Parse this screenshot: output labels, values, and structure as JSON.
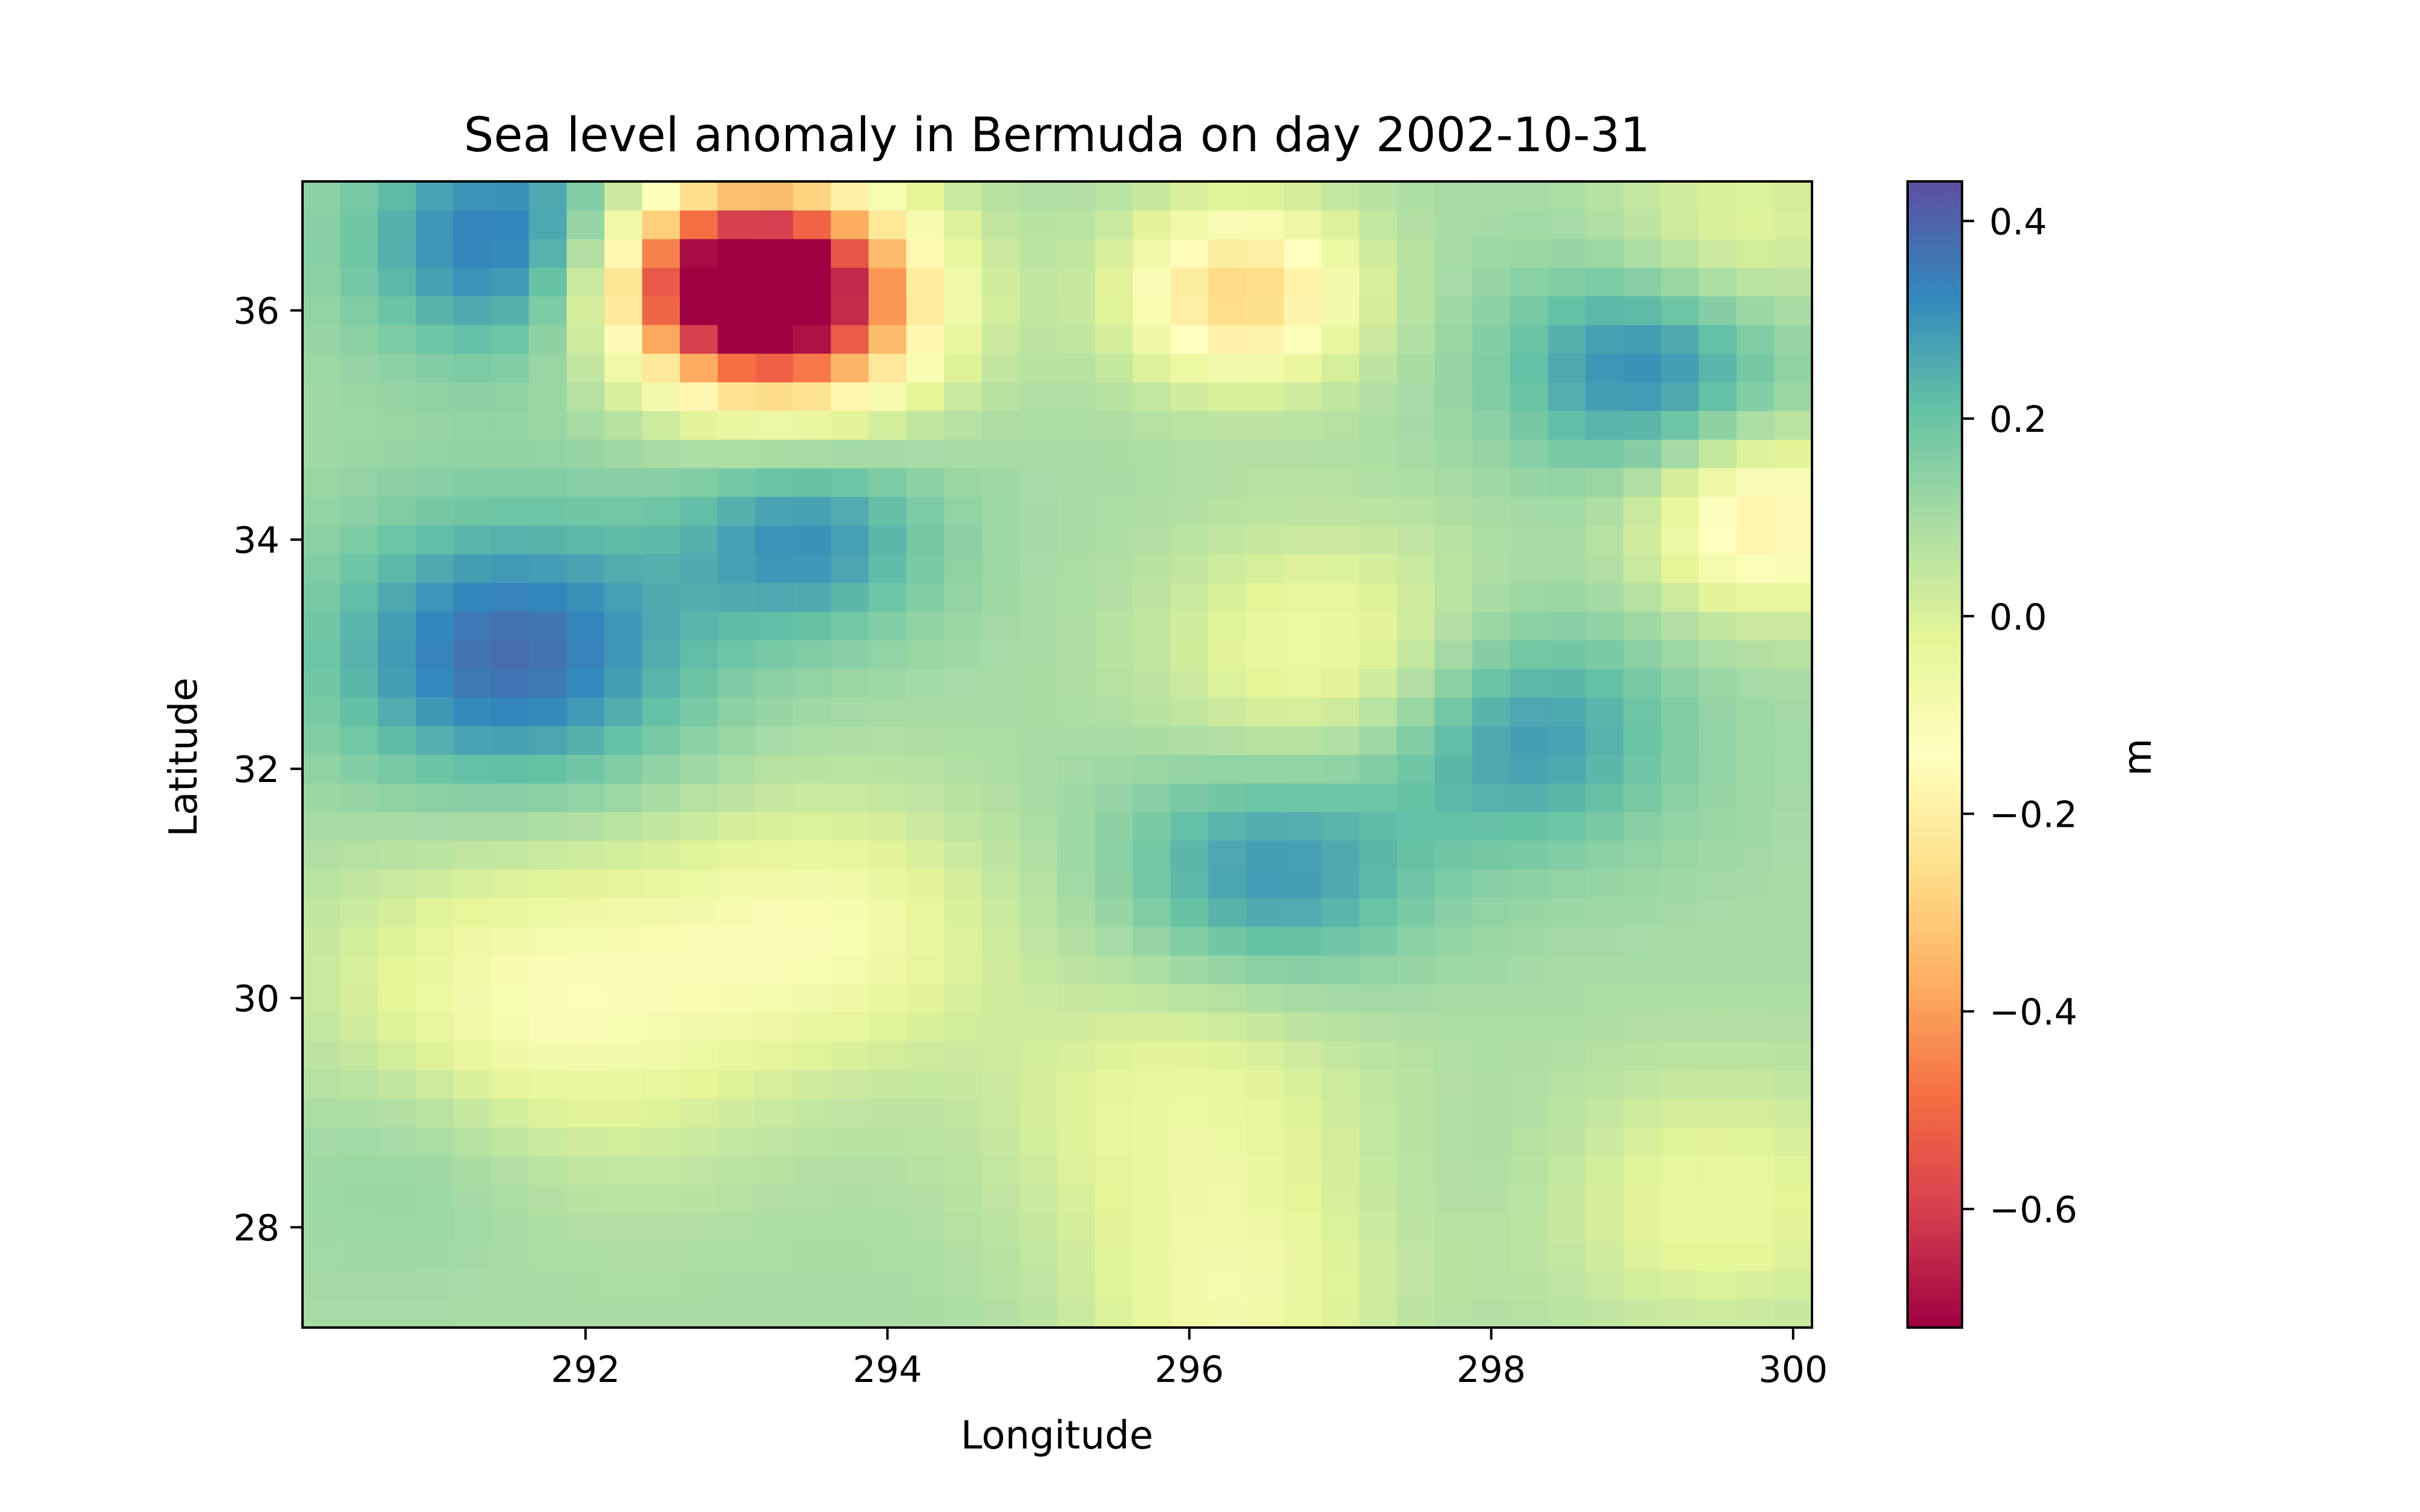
{
  "chart_data": {
    "type": "heatmap",
    "title": "Sea level anomaly in Bermuda on day 2002-10-31",
    "xlabel": "Longitude",
    "ylabel": "Latitude",
    "colorbar_label": "m",
    "colormap": "Spectral",
    "colormap_stops": [
      "#9e0142",
      "#d53e4f",
      "#f46d43",
      "#fdae61",
      "#fee08b",
      "#ffffbf",
      "#e6f598",
      "#abdda4",
      "#66c2a5",
      "#3288bd",
      "#5e4fa2"
    ],
    "xlim": [
      290.125,
      300.125
    ],
    "ylim": [
      27.125,
      37.125
    ],
    "xticks": [
      292,
      294,
      296,
      298,
      300
    ],
    "yticks": [
      28,
      30,
      32,
      34,
      36
    ],
    "clim": [
      -0.72,
      0.44
    ],
    "cbar_ticks": [
      0.4,
      0.2,
      0.0,
      -0.2,
      -0.4,
      -0.6
    ],
    "cbar_tick_labels": [
      "0.4",
      "0.2",
      "0.0",
      "−0.2",
      "−0.4",
      "−0.6"
    ],
    "grid": false,
    "anomaly_features": [
      {
        "lon": 293.35,
        "lat": 36.1,
        "value": -0.7,
        "size": 0.65
      },
      {
        "lon": 292.8,
        "lat": 36.3,
        "value": -0.35,
        "size": 0.55
      },
      {
        "lon": 296.35,
        "lat": 36.15,
        "value": -0.28,
        "size": 0.55
      },
      {
        "lon": 291.5,
        "lat": 36.6,
        "value": 0.36,
        "size": 0.7
      },
      {
        "lon": 291.5,
        "lat": 33.0,
        "value": 0.38,
        "size": 0.85
      },
      {
        "lon": 293.45,
        "lat": 34.0,
        "value": 0.3,
        "size": 0.6
      },
      {
        "lon": 299.0,
        "lat": 35.5,
        "value": 0.32,
        "size": 0.65
      },
      {
        "lon": 299.8,
        "lat": 34.15,
        "value": -0.2,
        "size": 0.55
      },
      {
        "lon": 296.9,
        "lat": 33.0,
        "value": -0.08,
        "size": 0.75
      },
      {
        "lon": 298.2,
        "lat": 32.3,
        "value": 0.3,
        "size": 0.7
      },
      {
        "lon": 296.55,
        "lat": 31.1,
        "value": 0.3,
        "size": 0.7
      },
      {
        "lon": 291.7,
        "lat": 29.9,
        "value": -0.12,
        "size": 1.0
      },
      {
        "lon": 293.6,
        "lat": 30.6,
        "value": -0.08,
        "size": 0.8
      },
      {
        "lon": 291.0,
        "lat": 28.8,
        "value": 0.18,
        "size": 0.7
      },
      {
        "lon": 296.0,
        "lat": 29.0,
        "value": -0.05,
        "size": 0.9
      },
      {
        "lon": 299.5,
        "lat": 28.2,
        "value": -0.05,
        "size": 0.8
      },
      {
        "lon": 296.3,
        "lat": 27.3,
        "value": -0.06,
        "size": 0.7
      },
      {
        "lon": 298.0,
        "lat": 28.6,
        "value": 0.12,
        "size": 0.5
      },
      {
        "lon": 299.6,
        "lat": 36.7,
        "value": -0.03,
        "size": 0.6
      }
    ],
    "background_value": 0.1
  }
}
